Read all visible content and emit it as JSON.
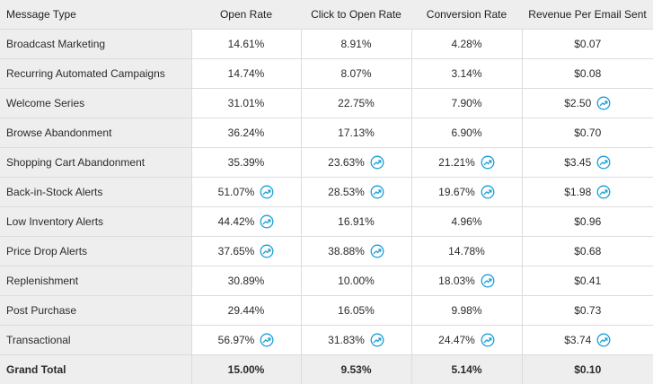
{
  "headers": [
    "Message Type",
    "Open Rate",
    "Click to Open Rate",
    "Conversion Rate",
    "Revenue Per Email Sent"
  ],
  "icon": "trending-up-icon",
  "accent_color": "#1a9fd6",
  "rows": [
    {
      "type": "Broadcast Marketing",
      "cells": [
        {
          "value": "14.61%",
          "trend": false
        },
        {
          "value": "8.91%",
          "trend": false
        },
        {
          "value": "4.28%",
          "trend": false
        },
        {
          "value": "$0.07",
          "trend": false
        }
      ]
    },
    {
      "type": "Recurring Automated Campaigns",
      "cells": [
        {
          "value": "14.74%",
          "trend": false
        },
        {
          "value": "8.07%",
          "trend": false
        },
        {
          "value": "3.14%",
          "trend": false
        },
        {
          "value": "$0.08",
          "trend": false
        }
      ]
    },
    {
      "type": "Welcome Series",
      "cells": [
        {
          "value": "31.01%",
          "trend": false
        },
        {
          "value": "22.75%",
          "trend": false
        },
        {
          "value": "7.90%",
          "trend": false
        },
        {
          "value": "$2.50",
          "trend": true
        }
      ]
    },
    {
      "type": "Browse Abandonment",
      "cells": [
        {
          "value": "36.24%",
          "trend": false
        },
        {
          "value": "17.13%",
          "trend": false
        },
        {
          "value": "6.90%",
          "trend": false
        },
        {
          "value": "$0.70",
          "trend": false
        }
      ]
    },
    {
      "type": "Shopping Cart Abandonment",
      "cells": [
        {
          "value": "35.39%",
          "trend": false
        },
        {
          "value": "23.63%",
          "trend": true
        },
        {
          "value": "21.21%",
          "trend": true
        },
        {
          "value": "$3.45",
          "trend": true
        }
      ]
    },
    {
      "type": "Back-in-Stock Alerts",
      "cells": [
        {
          "value": "51.07%",
          "trend": true
        },
        {
          "value": "28.53%",
          "trend": true
        },
        {
          "value": "19.67%",
          "trend": true
        },
        {
          "value": "$1.98",
          "trend": true
        }
      ]
    },
    {
      "type": "Low Inventory Alerts",
      "cells": [
        {
          "value": "44.42%",
          "trend": true
        },
        {
          "value": "16.91%",
          "trend": false
        },
        {
          "value": "4.96%",
          "trend": false
        },
        {
          "value": "$0.96",
          "trend": false
        }
      ]
    },
    {
      "type": "Price Drop Alerts",
      "cells": [
        {
          "value": "37.65%",
          "trend": true
        },
        {
          "value": "38.88%",
          "trend": true
        },
        {
          "value": "14.78%",
          "trend": false
        },
        {
          "value": "$0.68",
          "trend": false
        }
      ]
    },
    {
      "type": "Replenishment",
      "cells": [
        {
          "value": "30.89%",
          "trend": false
        },
        {
          "value": "10.00%",
          "trend": false
        },
        {
          "value": "18.03%",
          "trend": true
        },
        {
          "value": "$0.41",
          "trend": false
        }
      ]
    },
    {
      "type": "Post Purchase",
      "cells": [
        {
          "value": "29.44%",
          "trend": false
        },
        {
          "value": "16.05%",
          "trend": false
        },
        {
          "value": "9.98%",
          "trend": false
        },
        {
          "value": "$0.73",
          "trend": false
        }
      ]
    },
    {
      "type": "Transactional",
      "cells": [
        {
          "value": "56.97%",
          "trend": true
        },
        {
          "value": "31.83%",
          "trend": true
        },
        {
          "value": "24.47%",
          "trend": true
        },
        {
          "value": "$3.74",
          "trend": true
        }
      ]
    }
  ],
  "total": {
    "label": "Grand Total",
    "values": [
      "15.00%",
      "9.53%",
      "5.14%",
      "$0.10"
    ]
  }
}
